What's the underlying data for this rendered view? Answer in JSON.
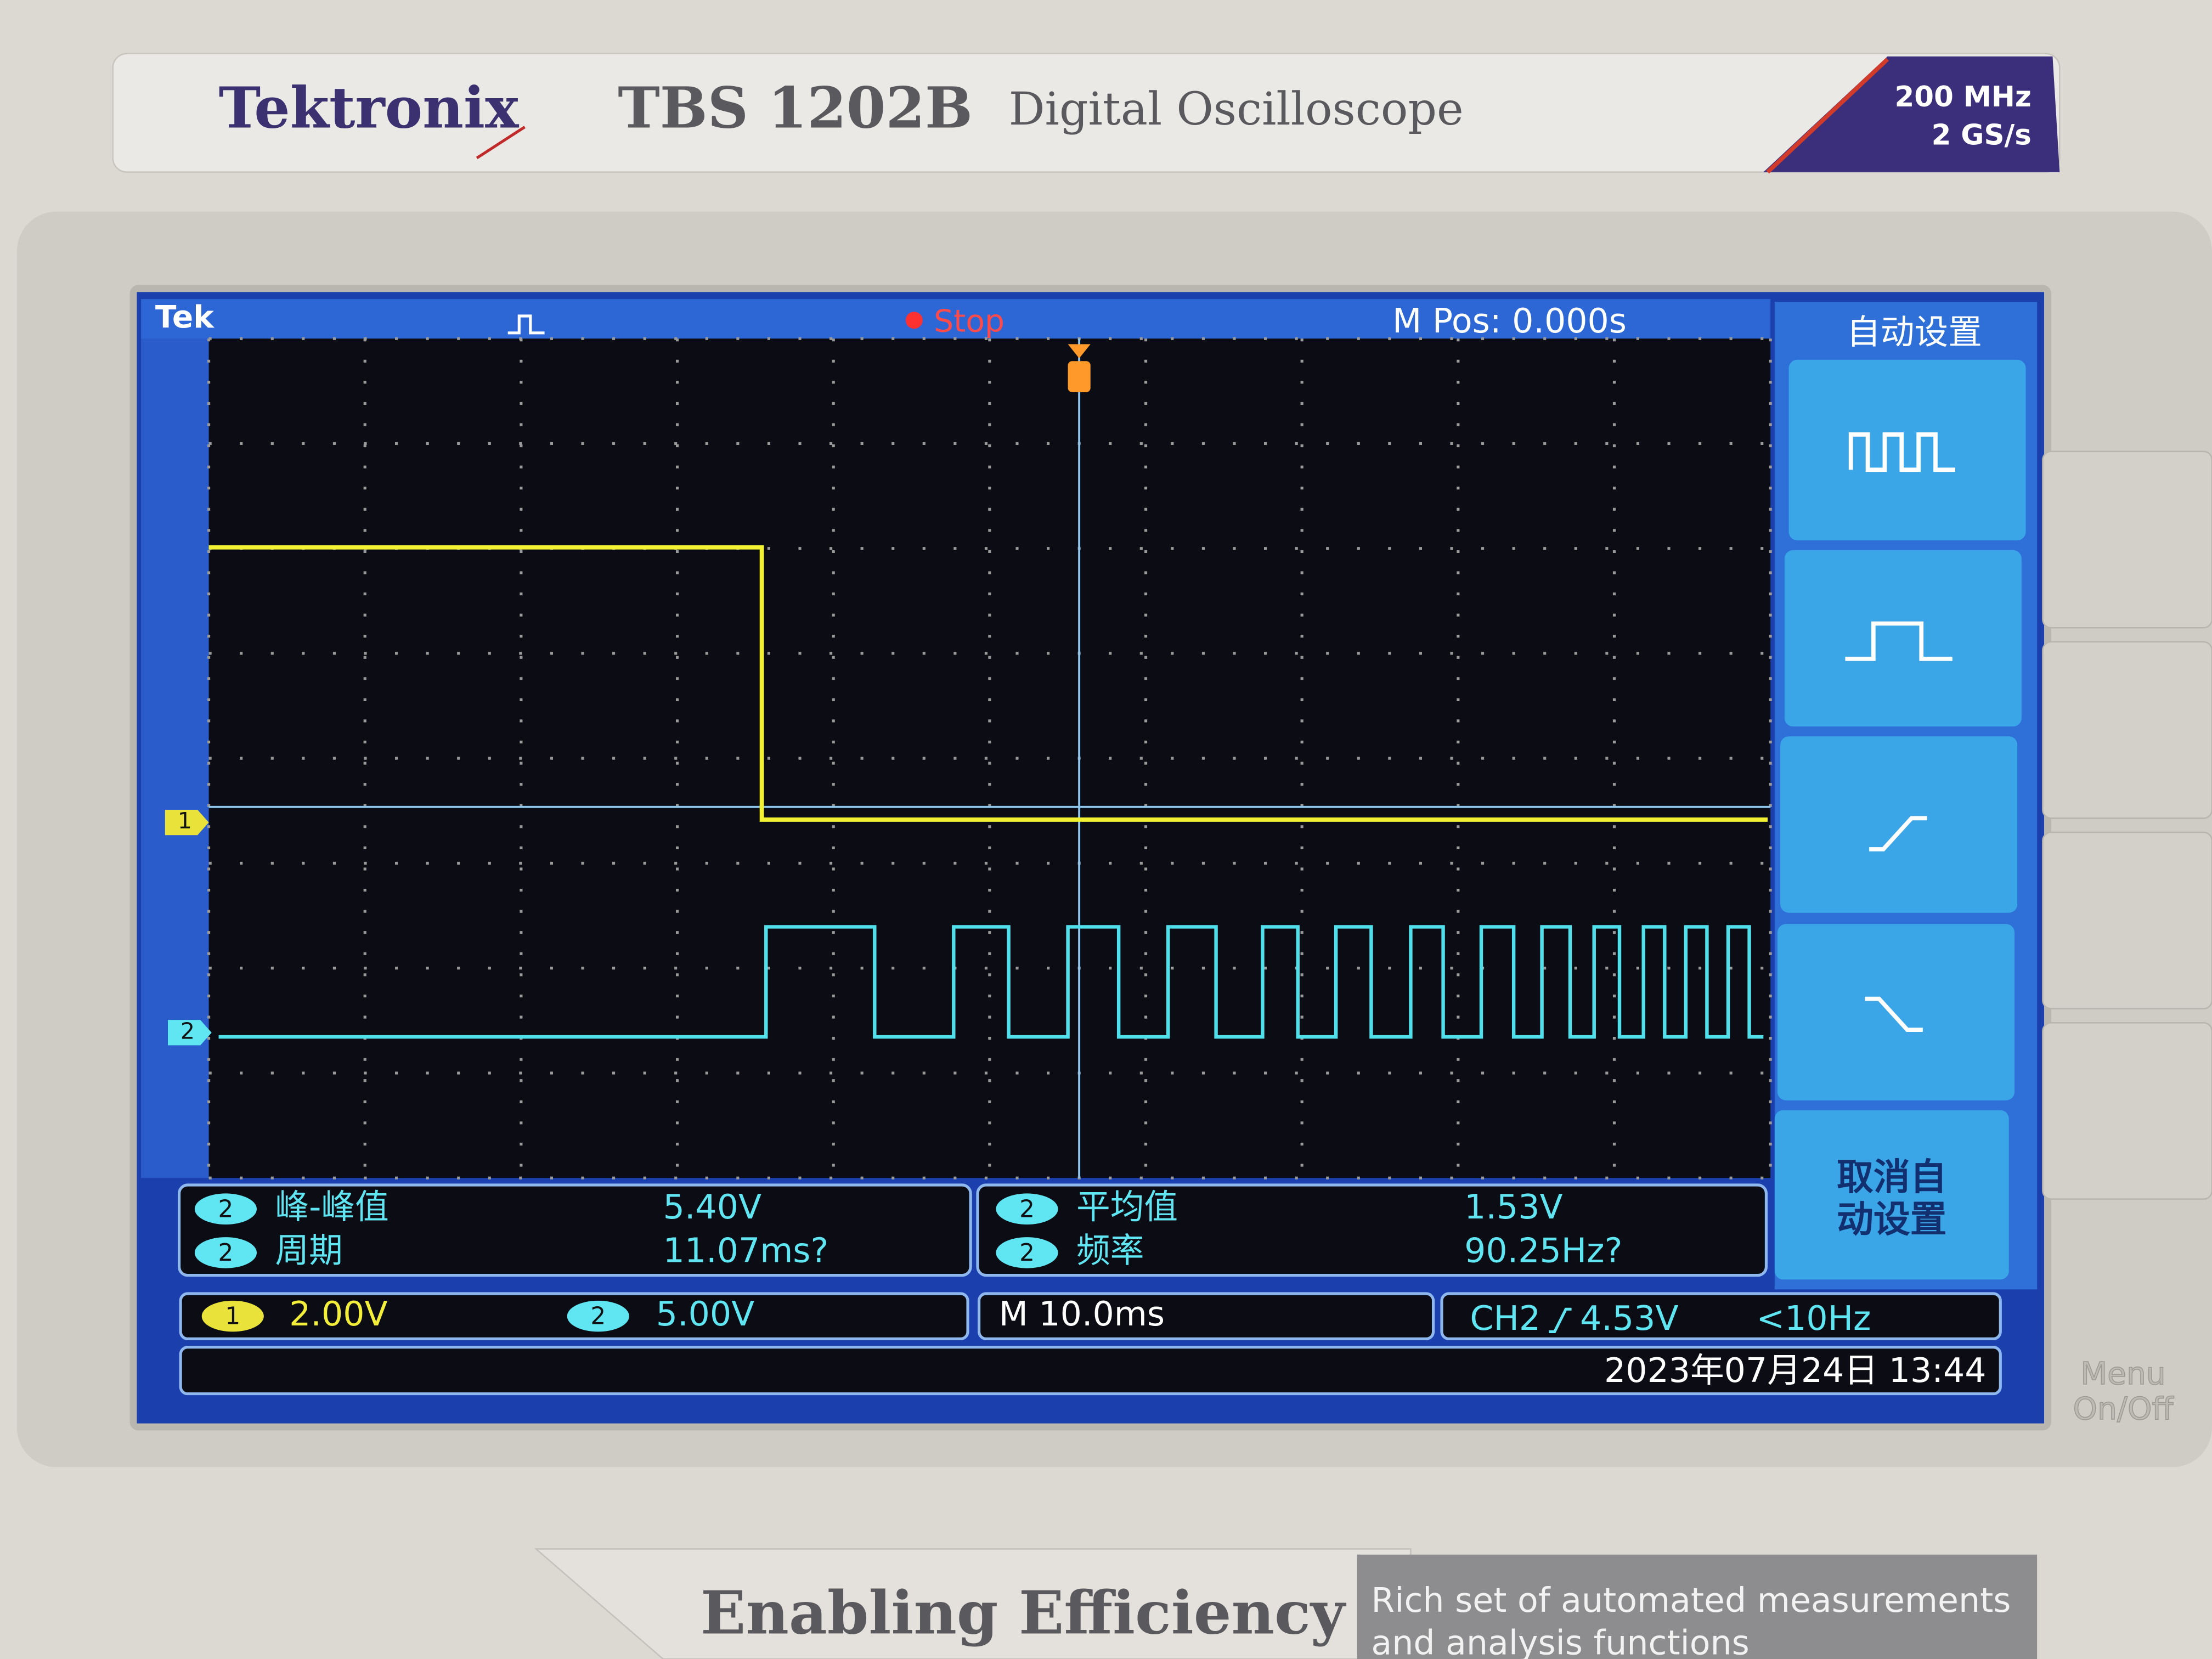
{
  "header": {
    "brand": "Tektronix",
    "model": "TBS 1202B",
    "product": "Digital Oscilloscope",
    "bandwidth": "200 MHz",
    "sample_rate": "2 GS/s"
  },
  "screen": {
    "logo": "Tek",
    "status": "Stop",
    "position": "M Pos: 0.000s",
    "channel_markers": [
      "1",
      "2"
    ],
    "menu": {
      "title": "自动设置",
      "cancel": [
        "取消自",
        "动设置"
      ]
    },
    "measurements": [
      {
        "channel": "2",
        "label": "峰-峰值",
        "value": "5.40V"
      },
      {
        "channel": "2",
        "label": "周期",
        "value": "11.07ms?"
      },
      {
        "channel": "2",
        "label": "平均值",
        "value": "1.53V"
      },
      {
        "channel": "2",
        "label": "频率",
        "value": "90.25Hz?"
      }
    ],
    "status_bar": {
      "ch1": {
        "channel": "1",
        "scale": "2.00V"
      },
      "ch2": {
        "channel": "2",
        "scale": "5.00V"
      },
      "timebase": "M 10.0ms",
      "trigger_source": "CH2",
      "trigger_level": "4.53V",
      "trigger_freq": "<10Hz",
      "datetime": "2023年07月24日 13:44"
    }
  },
  "bezel": {
    "menu_button": [
      "Menu",
      "On/Off"
    ],
    "slogan": "Enabling Efficiency",
    "feature": [
      "Rich set of automated measurements",
      "and analysis functions"
    ]
  }
}
